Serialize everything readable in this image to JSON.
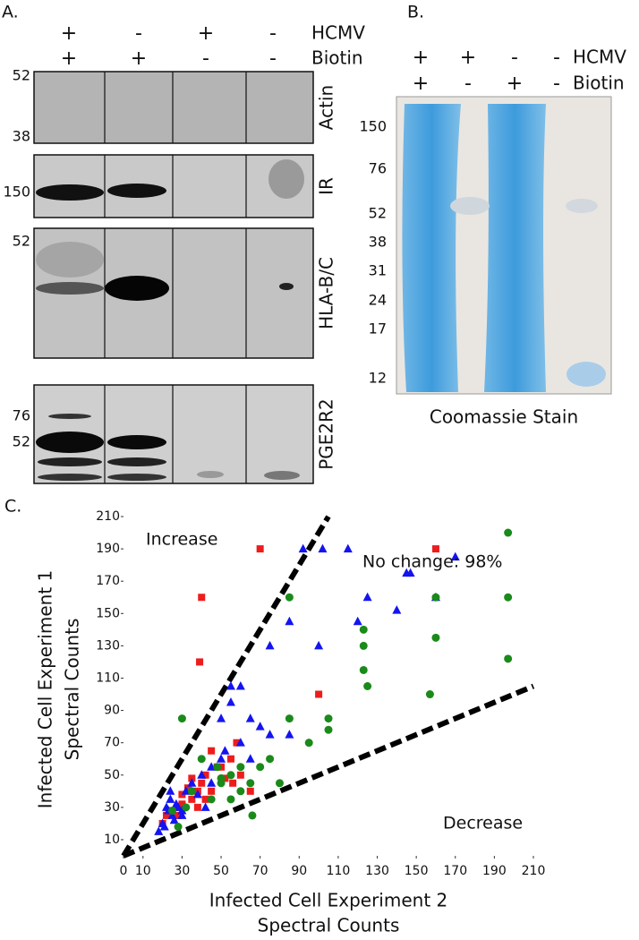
{
  "panel_a": {
    "label": "A.",
    "row_labels": [
      "HCMV",
      "Biotin"
    ],
    "hcmv": [
      "+",
      "-",
      "+",
      "-"
    ],
    "biotin": [
      "+",
      "+",
      "-",
      "-"
    ],
    "blots": [
      {
        "name": "Actin",
        "markers": [
          "52",
          "38"
        ]
      },
      {
        "name": "IR",
        "markers": [
          "150"
        ]
      },
      {
        "name": "HLA-B/C",
        "markers": [
          "52"
        ]
      },
      {
        "name": "PGE2R2",
        "markers": [
          "76",
          "52"
        ]
      }
    ]
  },
  "panel_b": {
    "label": "B.",
    "row_labels": [
      "HCMV",
      "Biotin"
    ],
    "hcmv": [
      "+",
      "+",
      "-",
      "-"
    ],
    "biotin": [
      "+",
      "-",
      "+",
      "-"
    ],
    "markers": [
      "150",
      "76",
      "52",
      "38",
      "31",
      "24",
      "17",
      "12"
    ],
    "caption": "Coomassie Stain"
  },
  "chart_data": {
    "type": "scatter",
    "panel_label": "C.",
    "x_label": [
      "Infected Cell Experiment 2",
      "Spectral Counts"
    ],
    "y_label": [
      "Infected Cell Experiment 1",
      "Spectral Counts"
    ],
    "annotations": [
      "Increase",
      "No change: 98%",
      "Decrease"
    ],
    "xlim": [
      0,
      210
    ],
    "ylim": [
      0,
      210
    ],
    "xticks": [
      0,
      10,
      30,
      50,
      70,
      90,
      110,
      130,
      150,
      170,
      190,
      210
    ],
    "yticks": [
      10,
      30,
      50,
      70,
      90,
      110,
      130,
      150,
      170,
      190,
      210
    ],
    "reference_lines": [
      {
        "slope": 2
      },
      {
        "slope": 0.5
      }
    ],
    "series": [
      {
        "color": "#ee1c1c",
        "marker": "square",
        "x": [
          70,
          40,
          39,
          160,
          100,
          58,
          55,
          50,
          45,
          42,
          40,
          38,
          35,
          33,
          30,
          28,
          25,
          22,
          20,
          48,
          52,
          60,
          45,
          35,
          30,
          42,
          56,
          65,
          28,
          38
        ],
        "values": [
          190,
          160,
          120,
          190,
          100,
          70,
          60,
          55,
          65,
          50,
          45,
          40,
          35,
          42,
          38,
          30,
          28,
          25,
          20,
          55,
          48,
          50,
          40,
          48,
          32,
          35,
          45,
          40,
          25,
          30
        ]
      },
      {
        "color": "#1414f0",
        "marker": "triangle",
        "x": [
          92,
          102,
          115,
          75,
          85,
          100,
          120,
          125,
          145,
          147,
          140,
          160,
          170,
          55,
          60,
          65,
          50,
          55,
          85,
          75,
          70,
          25,
          22,
          20,
          23,
          24,
          26,
          28,
          30,
          32,
          35,
          40,
          45,
          50,
          52,
          18,
          21,
          24,
          27,
          30,
          60,
          65,
          45,
          38,
          42
        ],
        "values": [
          190,
          190,
          190,
          130,
          145,
          130,
          145,
          160,
          175,
          175,
          152,
          160,
          185,
          105,
          105,
          85,
          85,
          95,
          75,
          75,
          80,
          25,
          30,
          20,
          28,
          35,
          22,
          30,
          25,
          40,
          45,
          50,
          55,
          60,
          65,
          15,
          18,
          40,
          32,
          28,
          70,
          60,
          45,
          38,
          30
        ]
      },
      {
        "color": "#1a8a1a",
        "marker": "circle",
        "x": [
          197,
          197,
          197,
          160,
          160,
          157,
          123,
          123,
          123,
          125,
          105,
          105,
          95,
          85,
          85,
          30,
          40,
          48,
          50,
          55,
          60,
          65,
          70,
          75,
          80,
          66,
          45,
          35,
          25,
          28,
          32,
          60,
          55,
          50
        ],
        "values": [
          200,
          160,
          122,
          160,
          135,
          100,
          140,
          130,
          115,
          105,
          85,
          78,
          70,
          160,
          85,
          85,
          60,
          55,
          45,
          50,
          55,
          45,
          55,
          60,
          45,
          25,
          35,
          40,
          28,
          18,
          30,
          40,
          35,
          48
        ]
      }
    ]
  }
}
